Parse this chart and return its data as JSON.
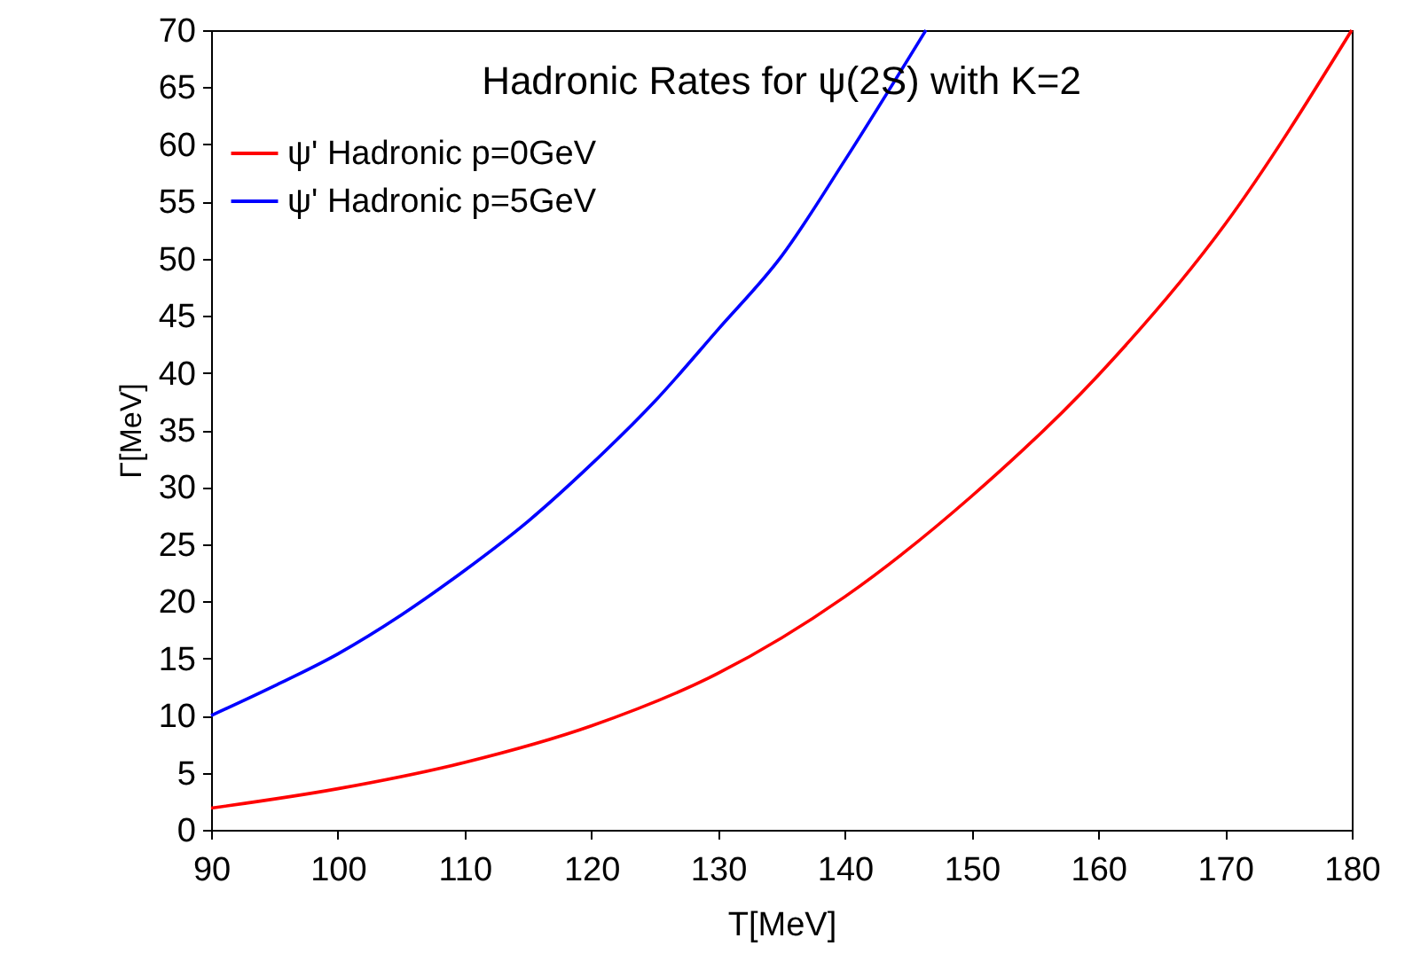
{
  "chart_data": {
    "type": "line",
    "title": "Hadronic Rates for ψ(2S) with K=2",
    "xlabel": "T[MeV]",
    "ylabel": "Γ[MeV]",
    "xlim": [
      90,
      180
    ],
    "xticks": [
      90,
      100,
      110,
      120,
      130,
      140,
      150,
      160,
      170,
      180
    ],
    "ylim": [
      0,
      70
    ],
    "yticks": [
      0,
      5,
      10,
      15,
      20,
      25,
      30,
      35,
      40,
      45,
      50,
      55,
      60,
      65,
      70
    ],
    "grid": false,
    "legend": "top left",
    "marker": "none",
    "line_style": "solid",
    "series": [
      {
        "name": "ψ' Hadronic p=0GeV",
        "color": "#ff0000",
        "x": [
          90,
          100,
          110,
          120,
          130,
          140,
          150,
          160,
          170,
          180
        ],
        "values": [
          1.9,
          3.6,
          5.9,
          9.1,
          13.7,
          20.4,
          29.2,
          39.8,
          53,
          70
        ]
      },
      {
        "name": "ψ' Hadronic p=5GeV",
        "color": "#0000ff",
        "x": [
          90,
          95,
          100,
          105,
          110,
          115,
          120,
          125,
          130,
          135,
          140,
          146.4
        ],
        "values": [
          10,
          12.6,
          15.4,
          18.8,
          22.7,
          27,
          32,
          37.5,
          43.8,
          50.2,
          58.6,
          70
        ]
      }
    ]
  }
}
